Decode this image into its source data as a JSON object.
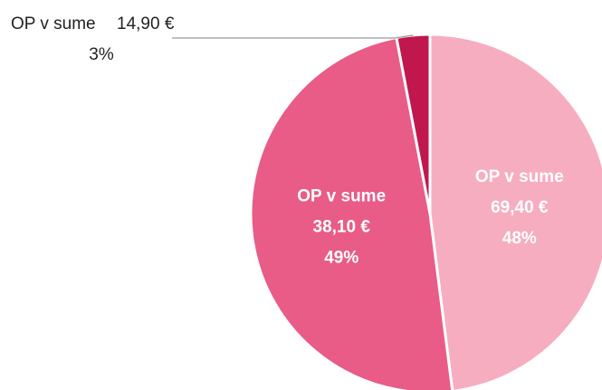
{
  "chart_data": {
    "type": "pie",
    "categories": [
      "OP v sume",
      "OP v sume",
      "OP v sume"
    ],
    "amounts": [
      "69,40 €",
      "38,10 €",
      "14,90 €"
    ],
    "values": [
      48,
      49,
      3
    ],
    "value_labels": [
      "48%",
      "49%",
      "3%"
    ],
    "colors": [
      "#f7adc0",
      "#e85c87",
      "#c0174f"
    ]
  }
}
